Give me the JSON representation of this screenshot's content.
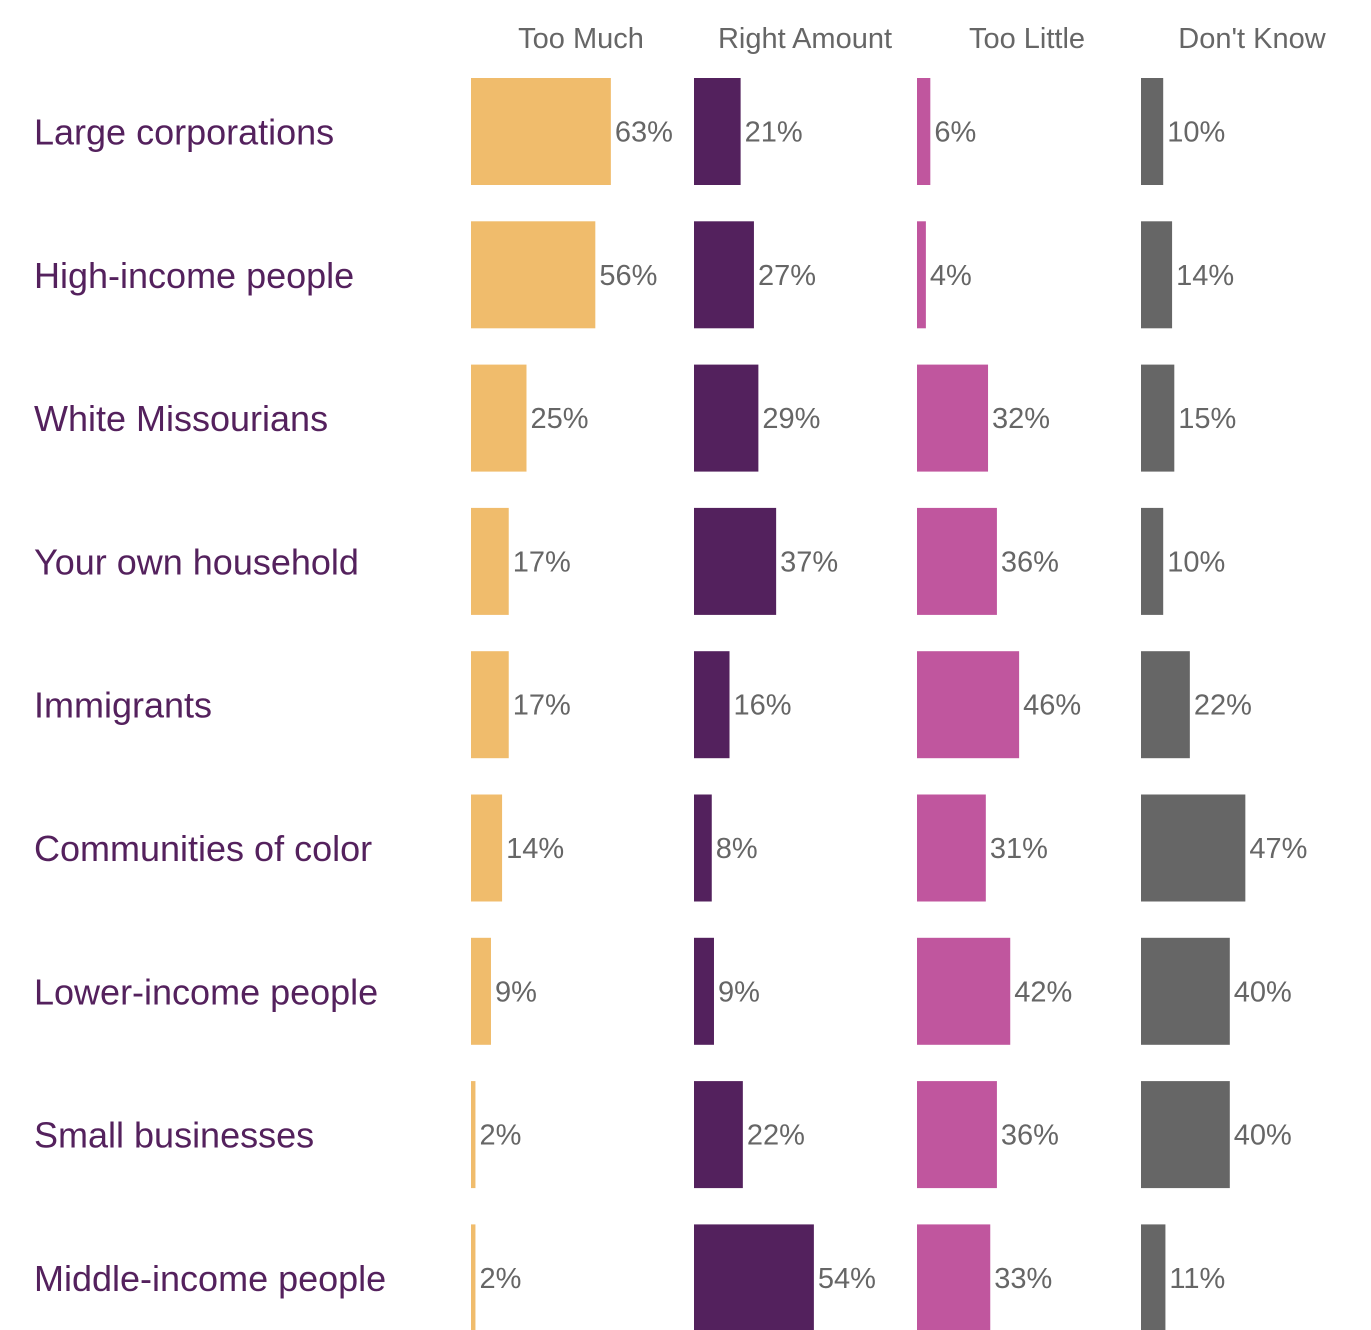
{
  "chart_data": {
    "type": "bar",
    "orientation": "horizontal",
    "layout": "small-multiples",
    "value_suffix": "%",
    "row_label_color": "#54215d",
    "value_label_color": "#666666",
    "categories": [
      "Large corporations",
      "High-income people",
      "White Missourians",
      "Your own household",
      "Immigrants",
      "Communities of color",
      "Lower-income people",
      "Small businesses",
      "Middle-income people"
    ],
    "series": [
      {
        "name": "Too Much",
        "color": "#f0bc6c",
        "values": [
          63,
          56,
          25,
          17,
          17,
          14,
          9,
          2,
          2
        ]
      },
      {
        "name": "Right Amount",
        "color": "#53215d",
        "values": [
          21,
          27,
          29,
          37,
          16,
          8,
          9,
          22,
          54
        ]
      },
      {
        "name": "Too Little",
        "color": "#c0569e",
        "values": [
          6,
          4,
          32,
          36,
          46,
          31,
          42,
          36,
          33
        ]
      },
      {
        "name": "Don't Know",
        "color": "#666666",
        "values": [
          10,
          14,
          15,
          10,
          22,
          47,
          40,
          40,
          11
        ]
      }
    ]
  }
}
